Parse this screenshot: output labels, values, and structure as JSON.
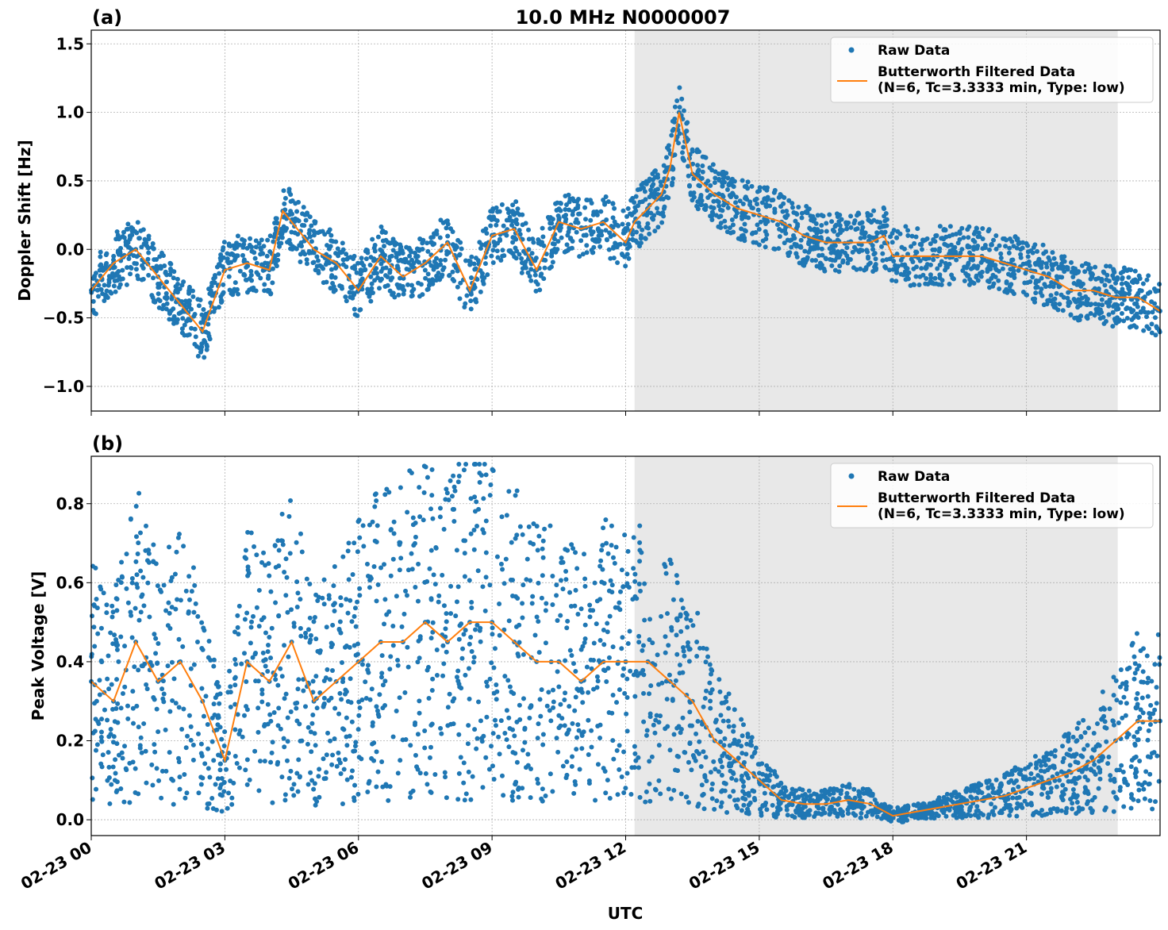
{
  "figure": {
    "title": "10.0 MHz N0000007",
    "xlabel": "UTC"
  },
  "chart_data": [
    {
      "type": "line",
      "panel_label": "(a)",
      "ylabel": "Doppler Shift [Hz]",
      "xlim": [
        0,
        24
      ],
      "ylim": [
        -1.18,
        1.6
      ],
      "yticks": [
        -1.0,
        -0.5,
        0.0,
        0.5,
        1.0,
        1.5
      ],
      "ytick_labels": [
        "−1.0",
        "−0.5",
        "0.0",
        "0.5",
        "1.0",
        "1.5"
      ],
      "grid": true,
      "legend_position": "upper right",
      "shaded_span_hours": [
        12.2,
        23.05
      ],
      "series": [
        {
          "name": "Raw Data",
          "style": "scatter",
          "color": "#1f77b4",
          "x": [
            0.0,
            0.5,
            1.0,
            1.5,
            2.0,
            2.5,
            3.0,
            3.5,
            4.0,
            4.3,
            4.5,
            5.0,
            5.5,
            6.0,
            6.5,
            7.0,
            7.5,
            8.0,
            8.5,
            9.0,
            9.5,
            10.0,
            10.5,
            11.0,
            11.5,
            12.0,
            12.2,
            12.5,
            12.8,
            13.0,
            13.2,
            13.5,
            14.0,
            14.5,
            15.0,
            15.5,
            16.0,
            16.5,
            17.0,
            17.5,
            17.8,
            18.0,
            18.5,
            19.0,
            19.5,
            20.0,
            20.5,
            21.0,
            21.5,
            22.0,
            22.5,
            23.0,
            23.5,
            24.0
          ],
          "y": [
            -0.3,
            -0.1,
            0.0,
            -0.2,
            -0.4,
            -0.6,
            -0.15,
            -0.1,
            -0.15,
            0.28,
            0.2,
            0.0,
            -0.1,
            -0.3,
            -0.05,
            -0.2,
            -0.1,
            0.05,
            -0.3,
            0.1,
            0.15,
            -0.15,
            0.2,
            0.15,
            0.2,
            0.05,
            0.2,
            0.3,
            0.4,
            0.6,
            1.0,
            0.55,
            0.4,
            0.3,
            0.25,
            0.2,
            0.1,
            0.05,
            0.05,
            0.05,
            0.1,
            -0.05,
            -0.05,
            -0.05,
            -0.05,
            -0.05,
            -0.1,
            -0.15,
            -0.2,
            -0.3,
            -0.3,
            -0.35,
            -0.35,
            -0.45
          ]
        },
        {
          "name": "Butterworth Filtered Data\n(N=6, Tc=3.3333 min, Type: low)",
          "style": "line",
          "color": "#ff7f0e",
          "x": [
            0.0,
            0.5,
            1.0,
            1.5,
            2.0,
            2.5,
            3.0,
            3.5,
            4.0,
            4.3,
            4.5,
            5.0,
            5.5,
            6.0,
            6.5,
            7.0,
            7.5,
            8.0,
            8.5,
            9.0,
            9.5,
            10.0,
            10.5,
            11.0,
            11.5,
            12.0,
            12.2,
            12.5,
            12.8,
            13.0,
            13.2,
            13.5,
            14.0,
            14.5,
            15.0,
            15.5,
            16.0,
            16.5,
            17.0,
            17.5,
            17.8,
            18.0,
            18.5,
            19.0,
            19.5,
            20.0,
            20.5,
            21.0,
            21.5,
            22.0,
            22.5,
            23.0,
            23.5,
            24.0
          ],
          "y": [
            -0.3,
            -0.1,
            0.0,
            -0.2,
            -0.4,
            -0.6,
            -0.15,
            -0.1,
            -0.15,
            0.28,
            0.2,
            0.0,
            -0.1,
            -0.3,
            -0.05,
            -0.2,
            -0.1,
            0.05,
            -0.3,
            0.1,
            0.15,
            -0.15,
            0.2,
            0.15,
            0.2,
            0.05,
            0.2,
            0.3,
            0.4,
            0.6,
            1.0,
            0.55,
            0.4,
            0.3,
            0.25,
            0.2,
            0.1,
            0.05,
            0.05,
            0.05,
            0.1,
            -0.05,
            -0.05,
            -0.05,
            -0.05,
            -0.05,
            -0.1,
            -0.15,
            -0.2,
            -0.3,
            -0.3,
            -0.35,
            -0.35,
            -0.45
          ]
        }
      ]
    },
    {
      "type": "line",
      "panel_label": "(b)",
      "ylabel": "Peak Voltage [V]",
      "xlim": [
        0,
        24
      ],
      "ylim": [
        -0.04,
        0.92
      ],
      "yticks": [
        0.0,
        0.2,
        0.4,
        0.6,
        0.8
      ],
      "ytick_labels": [
        "0.0",
        "0.2",
        "0.4",
        "0.6",
        "0.8"
      ],
      "grid": true,
      "legend_position": "upper right",
      "shaded_span_hours": [
        12.2,
        23.05
      ],
      "xticks": [
        0,
        3,
        6,
        9,
        12,
        15,
        18,
        21
      ],
      "xtick_labels": [
        "02-23 00",
        "02-23 03",
        "02-23 06",
        "02-23 09",
        "02-23 12",
        "02-23 15",
        "02-23 18",
        "02-23 21"
      ],
      "series": [
        {
          "name": "Raw Data",
          "style": "scatter",
          "color": "#1f77b4",
          "x": [
            0.0,
            0.5,
            1.0,
            1.5,
            2.0,
            2.5,
            3.0,
            3.5,
            4.0,
            4.5,
            5.0,
            5.5,
            6.0,
            6.5,
            7.0,
            7.5,
            8.0,
            8.5,
            9.0,
            9.5,
            10.0,
            10.5,
            11.0,
            11.5,
            12.0,
            12.5,
            13.0,
            13.5,
            14.0,
            14.5,
            15.0,
            15.5,
            16.0,
            16.5,
            17.0,
            17.5,
            18.0,
            18.5,
            19.0,
            19.5,
            20.0,
            20.5,
            21.0,
            21.5,
            22.0,
            22.5,
            23.0,
            23.5,
            24.0
          ],
          "y": [
            0.35,
            0.3,
            0.45,
            0.35,
            0.4,
            0.3,
            0.15,
            0.4,
            0.35,
            0.45,
            0.3,
            0.35,
            0.4,
            0.45,
            0.45,
            0.5,
            0.45,
            0.5,
            0.5,
            0.45,
            0.4,
            0.4,
            0.35,
            0.4,
            0.4,
            0.4,
            0.35,
            0.3,
            0.2,
            0.15,
            0.1,
            0.05,
            0.04,
            0.04,
            0.05,
            0.04,
            0.01,
            0.02,
            0.03,
            0.04,
            0.05,
            0.06,
            0.08,
            0.1,
            0.12,
            0.15,
            0.2,
            0.25,
            0.25
          ]
        },
        {
          "name": "Butterworth Filtered Data\n(N=6, Tc=3.3333 min, Type: low)",
          "style": "line",
          "color": "#ff7f0e",
          "x": [
            0.0,
            0.5,
            1.0,
            1.5,
            2.0,
            2.5,
            3.0,
            3.5,
            4.0,
            4.5,
            5.0,
            5.5,
            6.0,
            6.5,
            7.0,
            7.5,
            8.0,
            8.5,
            9.0,
            9.5,
            10.0,
            10.5,
            11.0,
            11.5,
            12.0,
            12.5,
            13.0,
            13.5,
            14.0,
            14.5,
            15.0,
            15.5,
            16.0,
            16.5,
            17.0,
            17.5,
            18.0,
            18.5,
            19.0,
            19.5,
            20.0,
            20.5,
            21.0,
            21.5,
            22.0,
            22.5,
            23.0,
            23.5,
            24.0
          ],
          "y": [
            0.35,
            0.3,
            0.45,
            0.35,
            0.4,
            0.3,
            0.15,
            0.4,
            0.35,
            0.45,
            0.3,
            0.35,
            0.4,
            0.45,
            0.45,
            0.5,
            0.45,
            0.5,
            0.5,
            0.45,
            0.4,
            0.4,
            0.35,
            0.4,
            0.4,
            0.4,
            0.35,
            0.3,
            0.2,
            0.15,
            0.1,
            0.05,
            0.04,
            0.04,
            0.05,
            0.04,
            0.01,
            0.02,
            0.03,
            0.04,
            0.05,
            0.06,
            0.08,
            0.1,
            0.12,
            0.15,
            0.2,
            0.25,
            0.25
          ]
        }
      ]
    }
  ]
}
